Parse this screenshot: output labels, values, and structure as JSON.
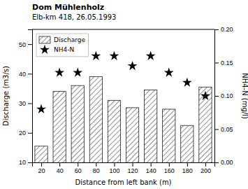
{
  "chart_data": {
    "type": "bar",
    "title": "Dom Mühlenholz",
    "subtitle": "Elb-km 418, 26.05.1993",
    "xlabel": "Distance from left bank (m)",
    "ylabel": "Discharge (m3/s)",
    "y2label": "NH4-N (mg/l)",
    "x": [
      20,
      40,
      60,
      80,
      100,
      120,
      140,
      160,
      180,
      200
    ],
    "xlim": [
      10,
      210
    ],
    "xticks": [
      20,
      40,
      60,
      80,
      100,
      120,
      140,
      160,
      180,
      200
    ],
    "ylim": [
      10,
      55
    ],
    "yticks": [
      10,
      20,
      30,
      40,
      50
    ],
    "y2lim": [
      0.0,
      0.2
    ],
    "y2ticks": [
      {
        "value": 0.0,
        "label": "0.00"
      },
      {
        "value": 0.05,
        "label": "0.05"
      },
      {
        "value": 0.1,
        "label": "0.10"
      },
      {
        "value": 0.15,
        "label": "0.15"
      },
      {
        "value": 0.2,
        "label": "0.20"
      }
    ],
    "grid": false,
    "legend": "upper left",
    "series": [
      {
        "name": "Discharge",
        "type": "bar",
        "color": "white",
        "values": [
          15.5,
          34,
          36,
          39,
          31,
          28.5,
          34.5,
          28,
          22.5,
          35.5
        ]
      },
      {
        "name": "NH4-N",
        "type": "scatter",
        "axis": "y2",
        "marker": "star",
        "color": "black",
        "values": [
          0.08,
          0.135,
          0.135,
          0.16,
          0.16,
          0.145,
          0.16,
          0.135,
          0.12,
          0.1
        ]
      }
    ]
  }
}
